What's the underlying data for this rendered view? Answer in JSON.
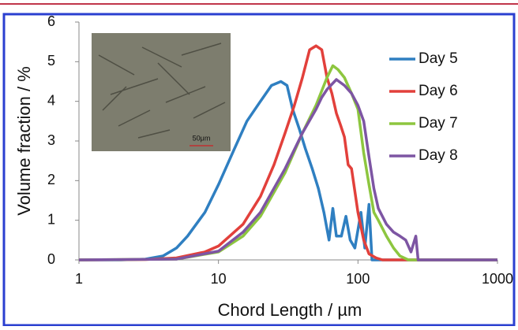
{
  "chart_data": {
    "type": "line",
    "x_label": "Chord Length / µm",
    "y_label": "Volume fraction / %",
    "xlim": [
      1,
      1000
    ],
    "xticks": [
      1,
      10,
      100,
      1000
    ],
    "xscale": "log",
    "ylim": [
      0,
      6
    ],
    "yticks": [
      0,
      1,
      2,
      3,
      4,
      5,
      6
    ],
    "inset_label": "50μm",
    "series": [
      {
        "name": "Day 5",
        "color": "#2f7fc1",
        "x": [
          1,
          2,
          3,
          4,
          5,
          6,
          8,
          10,
          13,
          16,
          20,
          24,
          28,
          31,
          34,
          38,
          42,
          47,
          52,
          57,
          62,
          66,
          70,
          76,
          82,
          88,
          95,
          105,
          112,
          120,
          126,
          1000
        ],
        "values": [
          0,
          0,
          0.02,
          0.1,
          0.3,
          0.6,
          1.2,
          1.9,
          2.8,
          3.5,
          4.0,
          4.4,
          4.5,
          4.4,
          3.8,
          3.3,
          2.8,
          2.3,
          1.8,
          1.2,
          0.5,
          1.3,
          0.6,
          0.6,
          1.1,
          0.5,
          0.3,
          1.2,
          0.3,
          1.4,
          0,
          0
        ]
      },
      {
        "name": "Day 6",
        "color": "#e2403b",
        "x": [
          1,
          3,
          5,
          8,
          10,
          15,
          20,
          25,
          30,
          35,
          40,
          45,
          50,
          55,
          60,
          65,
          70,
          75,
          80,
          85,
          90,
          100,
          110,
          120,
          135,
          150,
          1000
        ],
        "values": [
          0,
          0.01,
          0.05,
          0.2,
          0.35,
          0.9,
          1.6,
          2.4,
          3.2,
          3.9,
          4.6,
          5.3,
          5.4,
          5.3,
          4.6,
          4.2,
          3.7,
          3.4,
          3.1,
          2.4,
          2.3,
          1.2,
          0.5,
          0.15,
          0.05,
          0,
          0
        ]
      },
      {
        "name": "Day 7",
        "color": "#8dc63f",
        "x": [
          1,
          5,
          10,
          15,
          20,
          30,
          40,
          50,
          60,
          66,
          72,
          80,
          90,
          100,
          110,
          120,
          130,
          140,
          160,
          180,
          200,
          230,
          1000
        ],
        "values": [
          0,
          0.02,
          0.2,
          0.6,
          1.1,
          2.2,
          3.2,
          3.9,
          4.6,
          4.9,
          4.8,
          4.6,
          4.2,
          3.8,
          2.7,
          1.9,
          1.2,
          1.0,
          0.6,
          0.3,
          0.1,
          0,
          0
        ]
      },
      {
        "name": "Day 8",
        "color": "#7d55a3",
        "x": [
          1,
          5,
          10,
          15,
          20,
          30,
          40,
          50,
          55,
          60,
          70,
          80,
          90,
          100,
          110,
          120,
          130,
          140,
          160,
          180,
          200,
          220,
          240,
          260,
          270,
          1000
        ],
        "values": [
          0,
          0.02,
          0.22,
          0.7,
          1.2,
          2.3,
          3.2,
          3.8,
          4.1,
          4.3,
          4.55,
          4.4,
          4.2,
          3.9,
          3.5,
          2.6,
          1.8,
          1.3,
          0.9,
          0.7,
          0.6,
          0.5,
          0.2,
          0.6,
          0,
          0
        ]
      }
    ]
  }
}
